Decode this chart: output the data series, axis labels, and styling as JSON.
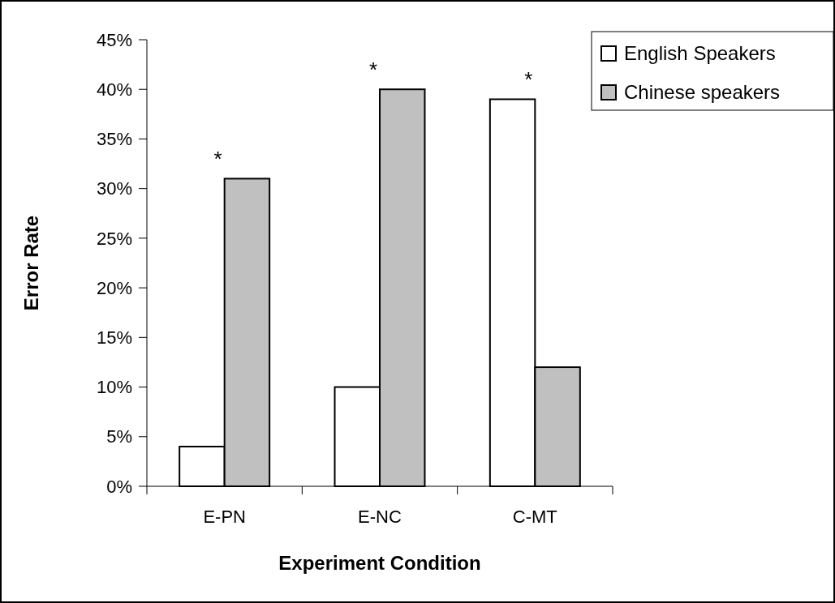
{
  "chart_data": {
    "type": "bar",
    "xlabel": "Experiment Condition",
    "ylabel": "Error Rate",
    "categories": [
      "E-PN",
      "E-NC",
      "C-MT"
    ],
    "series": [
      {
        "name": "English Speakers",
        "color": "#ffffff",
        "values": [
          4,
          10,
          39
        ]
      },
      {
        "name": "Chinese speakers",
        "color": "#c0c0c0",
        "values": [
          31,
          40,
          12
        ]
      }
    ],
    "ylim": [
      0,
      45
    ],
    "yticks": [
      {
        "value": 0,
        "label": "0%"
      },
      {
        "value": 5,
        "label": "5%"
      },
      {
        "value": 10,
        "label": "10%"
      },
      {
        "value": 15,
        "label": "15%"
      },
      {
        "value": 20,
        "label": "20%"
      },
      {
        "value": 25,
        "label": "25%"
      },
      {
        "value": 30,
        "label": "30%"
      },
      {
        "value": 35,
        "label": "35%"
      },
      {
        "value": 40,
        "label": "40%"
      },
      {
        "value": 45,
        "label": "45%"
      }
    ],
    "annotations": [
      "*",
      "*",
      "*"
    ],
    "legend": "top right"
  }
}
